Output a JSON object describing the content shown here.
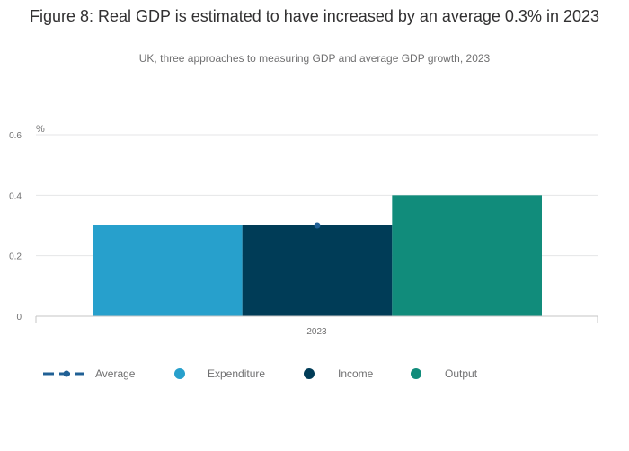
{
  "header": {
    "title": "Figure 8: Real GDP is estimated to have increased by an average 0.3% in 2023",
    "subtitle": "UK, three approaches to measuring GDP and average GDP growth, 2023"
  },
  "colors": {
    "expenditure": "#27a0cc",
    "income": "#003c57",
    "output": "#118c7b",
    "average": "#206095",
    "grid": "#e5e6e7",
    "axis": "#c4c4c4"
  },
  "chart_data": {
    "type": "bar",
    "categories": [
      "2023"
    ],
    "series": [
      {
        "name": "Expenditure",
        "values": [
          0.3
        ]
      },
      {
        "name": "Income",
        "values": [
          0.3
        ]
      },
      {
        "name": "Output",
        "values": [
          0.4
        ]
      }
    ],
    "average": {
      "name": "Average",
      "values": [
        0.3
      ]
    },
    "unit_label": "%",
    "yticks": [
      "0",
      "0.2",
      "0.4",
      "0.6"
    ],
    "ylim": [
      0,
      0.6
    ],
    "grid": true,
    "legend_position": "bottom"
  },
  "legend": {
    "items": [
      {
        "label": "Average",
        "marker": "line-dot",
        "color": "#206095"
      },
      {
        "label": "Expenditure",
        "marker": "circle",
        "color": "#27a0cc"
      },
      {
        "label": "Income",
        "marker": "circle",
        "color": "#003c57"
      },
      {
        "label": "Output",
        "marker": "circle",
        "color": "#118c7b"
      }
    ]
  }
}
